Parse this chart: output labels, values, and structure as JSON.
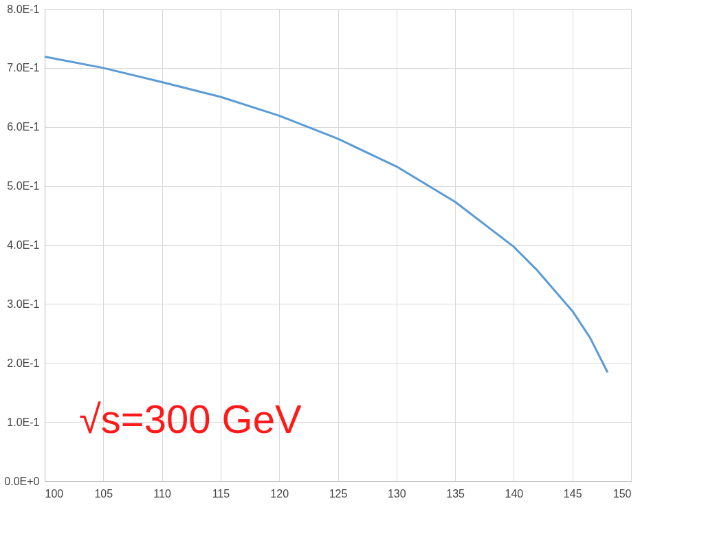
{
  "chart_data": {
    "type": "line",
    "x": [
      100,
      105,
      110,
      115,
      120,
      125,
      130,
      135,
      140,
      142,
      145,
      146.5,
      148
    ],
    "series": [
      {
        "color": "#5b9bd5",
        "values": [
          0.719,
          0.7,
          0.676,
          0.651,
          0.619,
          0.58,
          0.533,
          0.473,
          0.397,
          0.357,
          0.288,
          0.243,
          0.184
        ]
      }
    ],
    "xlim": [
      100,
      150
    ],
    "xticks": [
      100,
      105,
      110,
      115,
      120,
      125,
      130,
      135,
      140,
      145,
      150
    ],
    "ylim": [
      0,
      0.8
    ],
    "yticks": [
      {
        "value": 0,
        "label": "0.0E+0"
      },
      {
        "value": 0.1,
        "label": "1.0E-1"
      },
      {
        "value": 0.2,
        "label": "2.0E-1"
      },
      {
        "value": 0.3,
        "label": "3.0E-1"
      },
      {
        "value": 0.4,
        "label": "4.0E-1"
      },
      {
        "value": 0.5,
        "label": "5.0E-1"
      },
      {
        "value": 0.6,
        "label": "6.0E-1"
      },
      {
        "value": 0.7,
        "label": "7.0E-1"
      },
      {
        "value": 0.8,
        "label": "8.0E-1"
      }
    ],
    "grid": true,
    "marker": "none",
    "line_style": "solid",
    "annotations": [
      "√s=300 GeV"
    ]
  }
}
